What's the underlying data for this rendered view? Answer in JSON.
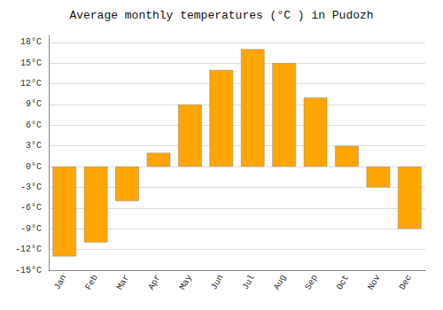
{
  "chart_data": {
    "type": "bar",
    "title": "Average monthly temperatures (°C ) in Pudozh",
    "categories": [
      "Jan",
      "Feb",
      "Mar",
      "Apr",
      "May",
      "Jun",
      "Jul",
      "Aug",
      "Sep",
      "Oct",
      "Nov",
      "Dec"
    ],
    "values": [
      -13,
      -11,
      -5,
      2,
      9,
      14,
      17,
      15,
      10,
      3,
      -3,
      -9
    ],
    "color": "#FFA500",
    "ylim": [
      -15,
      19
    ],
    "yticks": [
      {
        "value": -15,
        "label": "-15°C"
      },
      {
        "value": -12,
        "label": "-12°C"
      },
      {
        "value": -9,
        "label": "-9°C"
      },
      {
        "value": -6,
        "label": "-6°C"
      },
      {
        "value": -3,
        "label": "-3°C"
      },
      {
        "value": 0,
        "label": "0°C"
      },
      {
        "value": 3,
        "label": "3°C"
      },
      {
        "value": 6,
        "label": "6°C"
      },
      {
        "value": 9,
        "label": "9°C"
      },
      {
        "value": 12,
        "label": "12°C"
      },
      {
        "value": 15,
        "label": "15°C"
      },
      {
        "value": 18,
        "label": "18°C"
      }
    ],
    "grid": true
  }
}
